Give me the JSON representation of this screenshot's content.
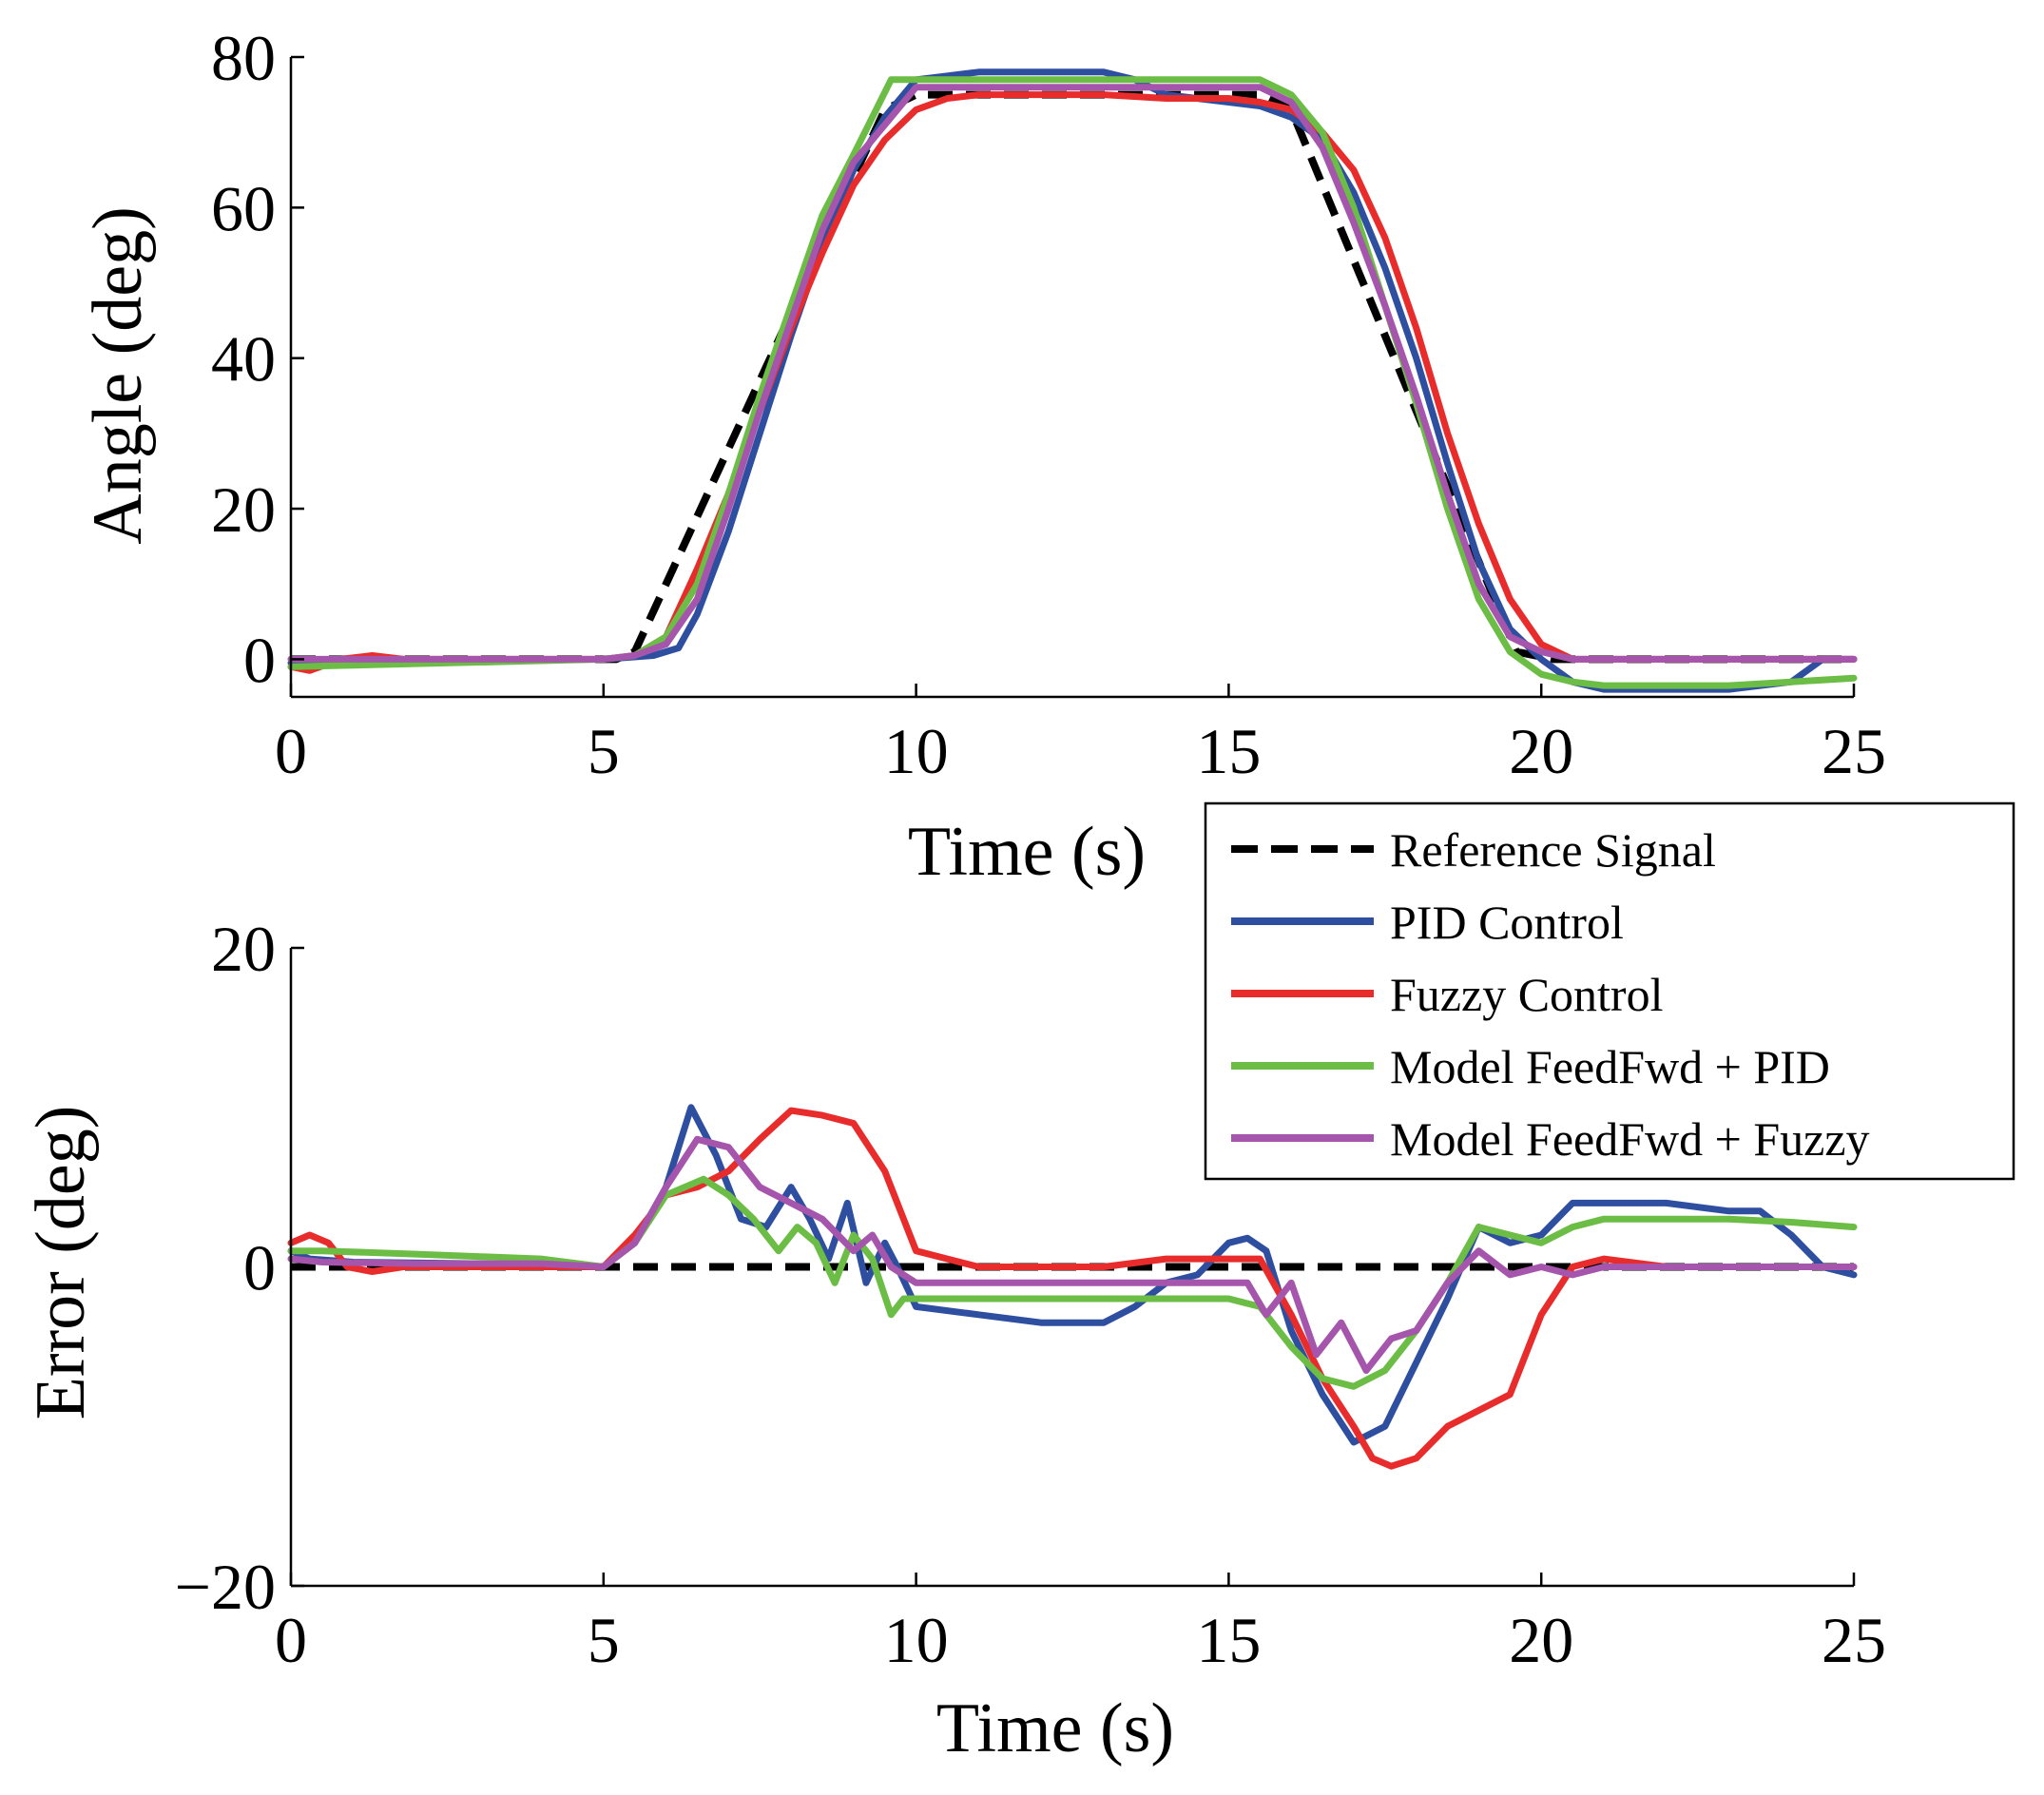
{
  "chart_data": [
    {
      "type": "line",
      "xlabel": "Time (s)",
      "ylabel": "Angle (deg)",
      "xlim": [
        0,
        25
      ],
      "ylim": [
        -5,
        80
      ],
      "xticks": [
        0,
        5,
        10,
        15,
        20,
        25
      ],
      "yticks": [
        0,
        20,
        40,
        60,
        80
      ],
      "grid": false,
      "series": [
        {
          "name": "Reference Signal",
          "color": "#000000",
          "dash": true,
          "x": [
            0,
            5.2,
            5.5,
            9.5,
            10,
            15.5,
            16,
            19.6,
            20.2,
            25
          ],
          "y": [
            0,
            0,
            1,
            73,
            75,
            75,
            73,
            1,
            0,
            0
          ]
        },
        {
          "name": "PID Control",
          "color": "#2e4f9f",
          "dash": false,
          "x": [
            0,
            5,
            5.8,
            6.2,
            6.5,
            7,
            7.5,
            8,
            8.5,
            9,
            9.5,
            10,
            10.5,
            11,
            12,
            13,
            13.5,
            14,
            15,
            15.5,
            16,
            16.5,
            17,
            17.5,
            18,
            18.5,
            19,
            19.5,
            20,
            20.5,
            21,
            22,
            23,
            24,
            24.5,
            25
          ],
          "y": [
            -0.5,
            0,
            0.5,
            1.5,
            6,
            17,
            30,
            43,
            55,
            65,
            72,
            77,
            77.5,
            78,
            78,
            78,
            77,
            75,
            74,
            73.5,
            72,
            69,
            62,
            52,
            40,
            26,
            13,
            4,
            0,
            -3,
            -4,
            -4,
            -4,
            -3,
            0,
            0
          ]
        },
        {
          "name": "Fuzzy Control",
          "color": "#e82c2c",
          "dash": false,
          "x": [
            0,
            0.3,
            0.8,
            1.3,
            1.8,
            5,
            5.5,
            6,
            6.5,
            7,
            7.5,
            8,
            8.5,
            9,
            9.5,
            10,
            10.5,
            11,
            12,
            13,
            14,
            15,
            15.5,
            16,
            16.5,
            17,
            17.5,
            18,
            18.5,
            19,
            19.5,
            20,
            20.5,
            21,
            22,
            23,
            24,
            25
          ],
          "y": [
            -1,
            -1.5,
            0,
            0.5,
            0,
            0,
            0.5,
            3,
            12,
            22,
            33,
            44,
            54,
            63,
            69,
            73,
            74.5,
            75,
            75,
            75,
            74.5,
            74.5,
            74,
            73,
            70,
            65,
            56,
            44,
            30,
            18,
            8,
            2,
            0,
            0,
            0,
            0,
            0,
            0
          ]
        },
        {
          "name": "Model FeedFwd + PID",
          "color": "#6cbd45",
          "dash": false,
          "x": [
            0,
            5,
            5.5,
            6,
            6.5,
            7,
            7.5,
            8,
            8.5,
            9,
            9.3,
            9.6,
            10,
            11,
            12,
            13,
            14,
            15,
            15.5,
            16,
            16.5,
            17,
            17.5,
            18,
            18.5,
            19,
            19.5,
            20,
            20.5,
            21,
            22,
            23,
            24,
            25
          ],
          "y": [
            -1,
            0,
            0.5,
            3,
            10,
            22,
            35,
            47,
            59,
            67,
            72,
            77,
            77,
            77,
            77,
            77,
            77,
            77,
            77,
            75,
            70,
            60,
            47,
            34,
            20,
            8,
            1,
            -2,
            -3,
            -3.5,
            -3.5,
            -3.5,
            -3,
            -2.5
          ]
        },
        {
          "name": "Model FeedFwd + Fuzzy",
          "color": "#a555ab",
          "dash": false,
          "x": [
            0,
            5,
            5.5,
            6,
            6.5,
            7,
            7.5,
            8,
            8.5,
            9,
            9.5,
            10,
            11,
            12,
            13,
            14,
            15,
            15.5,
            16,
            16.5,
            17,
            17.5,
            18,
            18.5,
            19,
            19.5,
            20,
            20.5,
            21,
            22,
            23,
            24,
            25
          ],
          "y": [
            0,
            0,
            0.5,
            2,
            8,
            20,
            33,
            45,
            57,
            66,
            71,
            76,
            76,
            76,
            76,
            76,
            76,
            76,
            74,
            68,
            58,
            47,
            35,
            22,
            10,
            3,
            1,
            0,
            0,
            0,
            0,
            0,
            0
          ]
        }
      ]
    },
    {
      "type": "line",
      "xlabel": "Time (s)",
      "ylabel": "Error (deg)",
      "xlim": [
        0,
        25
      ],
      "ylim": [
        -20,
        20
      ],
      "xticks": [
        0,
        5,
        10,
        15,
        20,
        25
      ],
      "yticks": [
        -20,
        0,
        20
      ],
      "ytick_labels": [
        "−20",
        "0",
        "20"
      ],
      "grid": false,
      "series": [
        {
          "name": "Reference Signal",
          "color": "#000000",
          "dash": true,
          "x": [
            0,
            25
          ],
          "y": [
            0,
            0
          ]
        },
        {
          "name": "PID Control",
          "color": "#2e4f9f",
          "dash": false,
          "x": [
            0,
            0.3,
            1,
            3,
            5,
            5.5,
            6,
            6.4,
            6.8,
            7.2,
            7.6,
            8,
            8.3,
            8.6,
            8.9,
            9.2,
            9.5,
            9.7,
            10,
            11,
            12,
            13,
            13.5,
            14,
            14.5,
            15,
            15.3,
            15.6,
            16,
            16.5,
            17,
            17.5,
            18,
            18.5,
            19,
            19.5,
            20,
            20.5,
            21,
            22,
            23,
            23.5,
            24,
            24.5,
            25
          ],
          "y": [
            1,
            0.5,
            0.3,
            0.2,
            0,
            1.5,
            5,
            10,
            7,
            3,
            2.5,
            5,
            3,
            0.5,
            4,
            -1,
            1.5,
            0,
            -2.5,
            -3,
            -3.5,
            -3.5,
            -2.5,
            -1,
            -0.5,
            1.5,
            1.8,
            1,
            -4,
            -8,
            -11,
            -10,
            -6,
            -2,
            2.5,
            1.5,
            2,
            4,
            4,
            4,
            3.5,
            3.5,
            2,
            0,
            -0.5
          ]
        },
        {
          "name": "Fuzzy Control",
          "color": "#e82c2c",
          "dash": false,
          "x": [
            0,
            0.3,
            0.6,
            0.9,
            1.3,
            1.8,
            2.5,
            5,
            5.5,
            6,
            6.5,
            7,
            7.5,
            8,
            8.5,
            9,
            9.5,
            10,
            10.5,
            11,
            12,
            13,
            14,
            15,
            15.5,
            16,
            16.5,
            17,
            17.3,
            17.6,
            18,
            18.5,
            19,
            19.5,
            20,
            20.5,
            21,
            22,
            23,
            24,
            25
          ],
          "y": [
            1.5,
            2,
            1.5,
            0,
            -0.3,
            0,
            0,
            0,
            2,
            4.5,
            5,
            6,
            8,
            9.8,
            9.5,
            9,
            6,
            1,
            0.5,
            0,
            0,
            0,
            0.5,
            0.5,
            0.5,
            -3,
            -7,
            -10,
            -12,
            -12.5,
            -12,
            -10,
            -9,
            -8,
            -3,
            0,
            0.5,
            0,
            0,
            0,
            0
          ]
        },
        {
          "name": "Model FeedFwd + PID",
          "color": "#6cbd45",
          "dash": false,
          "x": [
            0,
            0.5,
            2,
            4,
            5,
            5.5,
            6,
            6.3,
            6.6,
            7,
            7.4,
            7.8,
            8.1,
            8.4,
            8.7,
            9,
            9.3,
            9.6,
            9.8,
            10,
            11,
            12,
            13,
            14,
            15,
            15.5,
            16,
            16.5,
            17,
            17.5,
            18,
            18.5,
            19,
            19.5,
            20,
            20.5,
            21,
            22,
            23,
            24,
            25
          ],
          "y": [
            1,
            1,
            0.8,
            0.5,
            0,
            1.5,
            4.5,
            5,
            5.5,
            4.5,
            3,
            1,
            2.5,
            1.5,
            -1,
            2,
            0.5,
            -3,
            -2,
            -2,
            -2,
            -2,
            -2,
            -2,
            -2,
            -2.5,
            -5,
            -7,
            -7.5,
            -6.5,
            -4,
            -1,
            2.5,
            2,
            1.5,
            2.5,
            3,
            3,
            3,
            2.8,
            2.5
          ]
        },
        {
          "name": "Model FeedFwd + Fuzzy",
          "color": "#a555ab",
          "dash": false,
          "x": [
            0,
            0.5,
            2,
            4,
            5,
            5.5,
            6,
            6.5,
            7,
            7.5,
            8,
            8.5,
            9,
            9.3,
            9.6,
            10,
            11,
            12,
            13,
            14,
            15,
            15.3,
            15.6,
            16,
            16.4,
            16.8,
            17.2,
            17.6,
            18,
            18.5,
            19,
            19.5,
            20,
            20.5,
            21,
            22,
            23,
            24,
            25
          ],
          "y": [
            0.5,
            0.3,
            0.2,
            0.2,
            0,
            1.5,
            5,
            8,
            7.5,
            5,
            4,
            3,
            1,
            2,
            0,
            -1,
            -1,
            -1,
            -1,
            -1,
            -1,
            -1,
            -3,
            -1,
            -5.5,
            -3.5,
            -6.5,
            -4.5,
            -4,
            -1,
            1,
            -0.5,
            0,
            -0.5,
            0,
            0,
            0,
            0,
            0
          ]
        }
      ]
    }
  ]
}
